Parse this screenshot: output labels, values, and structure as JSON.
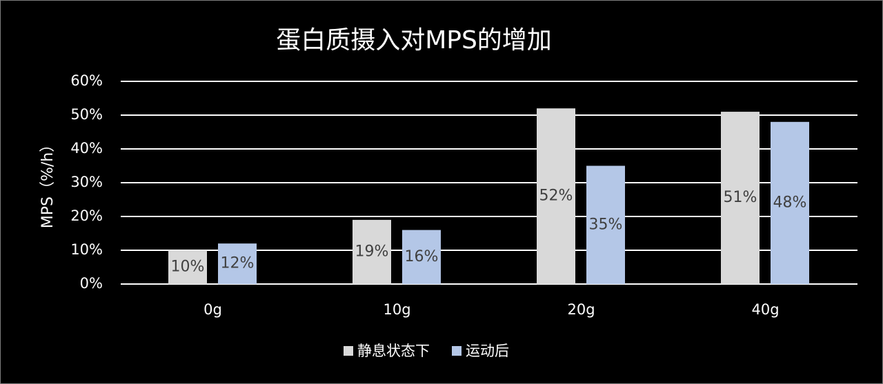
{
  "chart_data": {
    "type": "bar",
    "title": "蛋白质摄入对MPS的增加",
    "ylabel": "MPS（%/h）",
    "categories": [
      "0g",
      "10g",
      "20g",
      "40g"
    ],
    "series": [
      {
        "name": "静息状态下",
        "color": "#d9d9d9",
        "values": [
          10,
          19,
          52,
          51
        ],
        "value_labels": [
          "10%",
          "19%",
          "52%",
          "51%"
        ]
      },
      {
        "name": "运动后",
        "color": "#b4c7e7",
        "values": [
          12,
          16,
          35,
          48
        ],
        "value_labels": [
          "12%",
          "16%",
          "35%",
          "48%"
        ]
      }
    ],
    "ylim": [
      0,
      60
    ],
    "yticks": [
      {
        "value": 0,
        "label": "0%"
      },
      {
        "value": 10,
        "label": "10%"
      },
      {
        "value": 20,
        "label": "20%"
      },
      {
        "value": 30,
        "label": "30%"
      },
      {
        "value": 40,
        "label": "40%"
      },
      {
        "value": 50,
        "label": "50%"
      },
      {
        "value": 60,
        "label": "60%"
      }
    ],
    "grid": true,
    "legend": "bottom"
  }
}
